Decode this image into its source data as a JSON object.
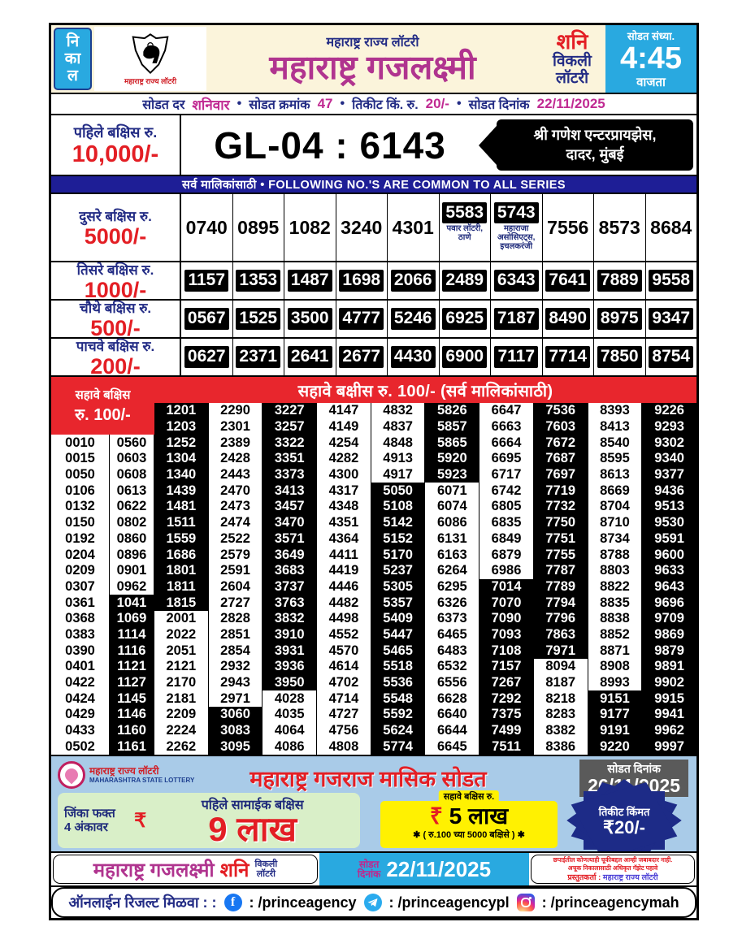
{
  "header": {
    "nikal": [
      "नि",
      "का",
      "ल"
    ],
    "logo_caption": "महाराष्ट्र राज्य लॉटरी",
    "org": "महाराष्ट्र राज्य लॉटरी",
    "title": "महाराष्ट्र गजलक्ष्मी",
    "day": "शनि",
    "weekly_line1": "विकली",
    "weekly_line2": "लॉटरी",
    "time_label": "सोडत संध्या.",
    "time": "4:45",
    "time_suffix": "वाजता"
  },
  "info": {
    "draw_day_label": "सोडत दर",
    "draw_day": "शनिवार",
    "draw_no_label": "सोडत क्रमांक",
    "draw_no": "47",
    "ticket_label": "तिकीट किं. रु.",
    "ticket_price": "20/-",
    "date_label": "सोडत दिनांक",
    "date": "22/11/2025",
    "bullet": "•"
  },
  "first_prize": {
    "label": "पहिले बक्षिस रु.",
    "amount": "10,000/-",
    "number": "GL-04 : 6143",
    "seller_line1": "श्री गणेश एन्टरप्रायझेस,",
    "seller_line2": "दादर, मुंबई"
  },
  "common_bar": "सर्व मालिकांसाठी   •   FOLLOWING NO.'S ARE COMMON TO ALL SERIES",
  "prizes": [
    {
      "label": "दुसरे बक्षिस रु.",
      "amount": "5000/-",
      "boxed": false,
      "numbers": [
        {
          "v": "0740"
        },
        {
          "v": "0895"
        },
        {
          "v": "1082"
        },
        {
          "v": "3240"
        },
        {
          "v": "4301"
        },
        {
          "v": "5583",
          "note": "पवार लॉटरी, ठाणे"
        },
        {
          "v": "5743",
          "note": "महाराजा असोसिएट्स, इचलकरंजी"
        },
        {
          "v": "7556"
        },
        {
          "v": "8573"
        },
        {
          "v": "8684"
        }
      ]
    },
    {
      "label": "तिसरे बक्षिस रु.",
      "amount": "1000/-",
      "boxed": true,
      "numbers": [
        "1157",
        "1353",
        "1487",
        "1698",
        "2066",
        "2489",
        "6343",
        "7641",
        "7889",
        "9558"
      ]
    },
    {
      "label": "चौथे बक्षिस रु.",
      "amount": "500/-",
      "boxed": true,
      "numbers": [
        "0567",
        "1525",
        "3500",
        "4777",
        "5246",
        "6925",
        "7187",
        "8490",
        "8975",
        "9347"
      ]
    },
    {
      "label": "पाचवे बक्षिस रु.",
      "amount": "200/-",
      "boxed": true,
      "numbers": [
        "0627",
        "2371",
        "2641",
        "2677",
        "4430",
        "6900",
        "7117",
        "7714",
        "7850",
        "8754"
      ]
    }
  ],
  "sixth_prize": {
    "label_line1": "सहावे बक्षिस",
    "label_line2": "रु. 100/-",
    "banner": "सहावे बक्षीस रु. 100/-   (सर्व मालिकांसाठी)",
    "columns": [
      [
        "0010",
        "0015",
        "0050",
        "0106",
        "0132",
        "0150",
        "0192",
        "0204",
        "0209",
        "0307",
        "0361",
        "0368",
        "0383",
        "0390",
        "0401",
        "0422",
        "0424",
        "0429",
        "0433",
        "0502"
      ],
      [
        "0560",
        "0603",
        "0608",
        "0613",
        "0622",
        "0802",
        "0860",
        "0896",
        "0901",
        "0962",
        "1041",
        "1069",
        "1114",
        "1116",
        "1121",
        "1127",
        "1145",
        "1146",
        "1160",
        "1161"
      ],
      [
        "1201",
        "1203",
        "1252",
        "1304",
        "1340",
        "1439",
        "1481",
        "1511",
        "1559",
        "1686",
        "1801",
        "1811",
        "1815",
        "2001",
        "2022",
        "2051",
        "2121",
        "2170",
        "2181",
        "2209",
        "2224",
        "2262"
      ],
      [
        "2290",
        "2301",
        "2389",
        "2428",
        "2443",
        "2470",
        "2473",
        "2474",
        "2522",
        "2579",
        "2591",
        "2604",
        "2727",
        "2828",
        "2851",
        "2854",
        "2932",
        "2943",
        "2971",
        "3060",
        "3083",
        "3095"
      ],
      [
        "3227",
        "3257",
        "3322",
        "3351",
        "3373",
        "3413",
        "3457",
        "3470",
        "3571",
        "3649",
        "3683",
        "3737",
        "3763",
        "3832",
        "3910",
        "3931",
        "3936",
        "3950",
        "4028",
        "4035",
        "4064",
        "4086"
      ],
      [
        "4147",
        "4149",
        "4254",
        "4282",
        "4300",
        "4317",
        "4348",
        "4351",
        "4364",
        "4411",
        "4419",
        "4446",
        "4482",
        "4498",
        "4552",
        "4570",
        "4614",
        "4702",
        "4714",
        "4727",
        "4756",
        "4808"
      ],
      [
        "4832",
        "4837",
        "4848",
        "4913",
        "4917",
        "5050",
        "5108",
        "5142",
        "5152",
        "5170",
        "5237",
        "5305",
        "5357",
        "5409",
        "5447",
        "5465",
        "5518",
        "5536",
        "5548",
        "5592",
        "5624",
        "5774"
      ],
      [
        "5826",
        "5857",
        "5865",
        "5920",
        "5923",
        "6071",
        "6074",
        "6086",
        "6131",
        "6163",
        "6264",
        "6295",
        "6326",
        "6373",
        "6465",
        "6483",
        "6532",
        "6556",
        "6628",
        "6640",
        "6644",
        "6645"
      ],
      [
        "6647",
        "6663",
        "6664",
        "6695",
        "6717",
        "6742",
        "6805",
        "6835",
        "6849",
        "6879",
        "6986",
        "7014",
        "7070",
        "7090",
        "7093",
        "7108",
        "7157",
        "7267",
        "7292",
        "7375",
        "7499",
        "7511"
      ],
      [
        "7536",
        "7603",
        "7672",
        "7687",
        "7697",
        "7719",
        "7732",
        "7750",
        "7751",
        "7755",
        "7787",
        "7789",
        "7794",
        "7796",
        "7863",
        "7971",
        "8094",
        "8187",
        "8218",
        "8283",
        "8382",
        "8386"
      ],
      [
        "8393",
        "8413",
        "8540",
        "8595",
        "8613",
        "8669",
        "8704",
        "8710",
        "8734",
        "8788",
        "8803",
        "8822",
        "8835",
        "8838",
        "8852",
        "8871",
        "8908",
        "8993",
        "9151",
        "9177",
        "9191",
        "9220"
      ],
      [
        "9226",
        "9293",
        "9302",
        "9340",
        "9377",
        "9436",
        "9513",
        "9530",
        "9591",
        "9600",
        "9633",
        "9643",
        "9696",
        "9709",
        "9869",
        "9879",
        "9891",
        "9902",
        "9915",
        "9941",
        "9962",
        "9997"
      ]
    ]
  },
  "ad": {
    "org_line1": "महाराष्ट्र राज्य लॉटरी",
    "org_line2": "MAHARASHTRA STATE LOTTERY",
    "title": "महाराष्ट्र गजराज मासिक सोडत",
    "date_label": "सोडत दिनांक",
    "date": "26/11/2025",
    "win_label1": "जिंका फक्त",
    "win_label2": "4 अंकावर",
    "first_common_label": "पहिले सामाईक बक्षिस",
    "rupee": "₹",
    "first_amount": "9 लाख",
    "sixth_tab": "सहावे बक्षिस रु.",
    "sixth_amount": "5 लाख",
    "sixth_sub": "✱ ( रु.100 च्या 5000 बक्षिसे ) ✱",
    "ticket_label": "तिकीट किंमत",
    "ticket_price": "₹20/-"
  },
  "footer": {
    "title": "महाराष्ट्र गजलक्ष्मी",
    "day": "शनि",
    "weekly_line1": "विकली",
    "weekly_line2": "लॉटरी",
    "date_label1": "सोडत",
    "date_label2": "दिनांक",
    "date": "22/11/2025",
    "disclaimer_line1": "छपाईतील कोणत्याही चूकीबद्दल आम्ही जबाबदार नाही.",
    "disclaimer_line2": "अचूक निकालासाठी अधिकृत गॅझेट पहावे",
    "publisher_label": "प्रस्तुतकर्ता :",
    "publisher": "महाराष्ट्र राज्य लॉटरी"
  },
  "social": {
    "label": "ऑनलाईन रिजल्ट मिळवा : :",
    "facebook_handle": ": /princeagency",
    "telegram_handle": ": /princeagencypl",
    "instagram_handle": ": /princeagencymah"
  },
  "colors": {
    "accent_blue": "#29A9E0",
    "magenta": "#B0348F",
    "red": "#E31E24",
    "navy": "#232C85",
    "bar_navy": "#1E1E96",
    "header_cream": "#FBF4DB",
    "ad_blue": "#A9CBE8",
    "green_box": "#D9EFC8",
    "yellow_box": "#FFF101",
    "burst_navy": "#1D2B87"
  }
}
